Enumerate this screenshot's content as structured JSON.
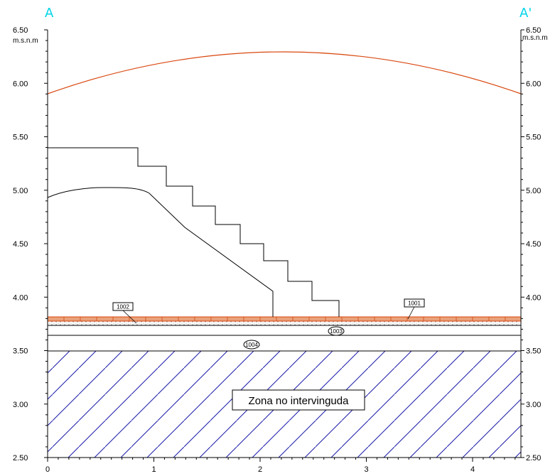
{
  "section": {
    "start_mark": "A",
    "end_mark": "A'",
    "mark_color": "#00d4e8"
  },
  "elevation_axis": {
    "unit": "m.s.n.m",
    "min": 2.5,
    "max": 6.5,
    "major_step": 0.5,
    "minor_step": 0.1,
    "tick_labels": [
      "6.50",
      "6.00",
      "5.50",
      "5.00",
      "4.50",
      "4.00",
      "3.50",
      "3.00",
      "2.50"
    ]
  },
  "distance_axis": {
    "tick_labels": [
      "0",
      "1",
      "2",
      "3",
      "4"
    ]
  },
  "units": [
    {
      "id": "1001",
      "shape": "box"
    },
    {
      "id": "1002",
      "shape": "box"
    },
    {
      "id": "1003",
      "shape": "oval"
    },
    {
      "id": "1004",
      "shape": "oval"
    }
  ],
  "untouched_zone": {
    "label": "Zona no intervinguda"
  },
  "colors": {
    "vault": "#d9470f",
    "pavement": "#d9470f",
    "pavement_fill": "#e9a27a",
    "hatch": "#1a1aa8",
    "line": "#000000"
  }
}
